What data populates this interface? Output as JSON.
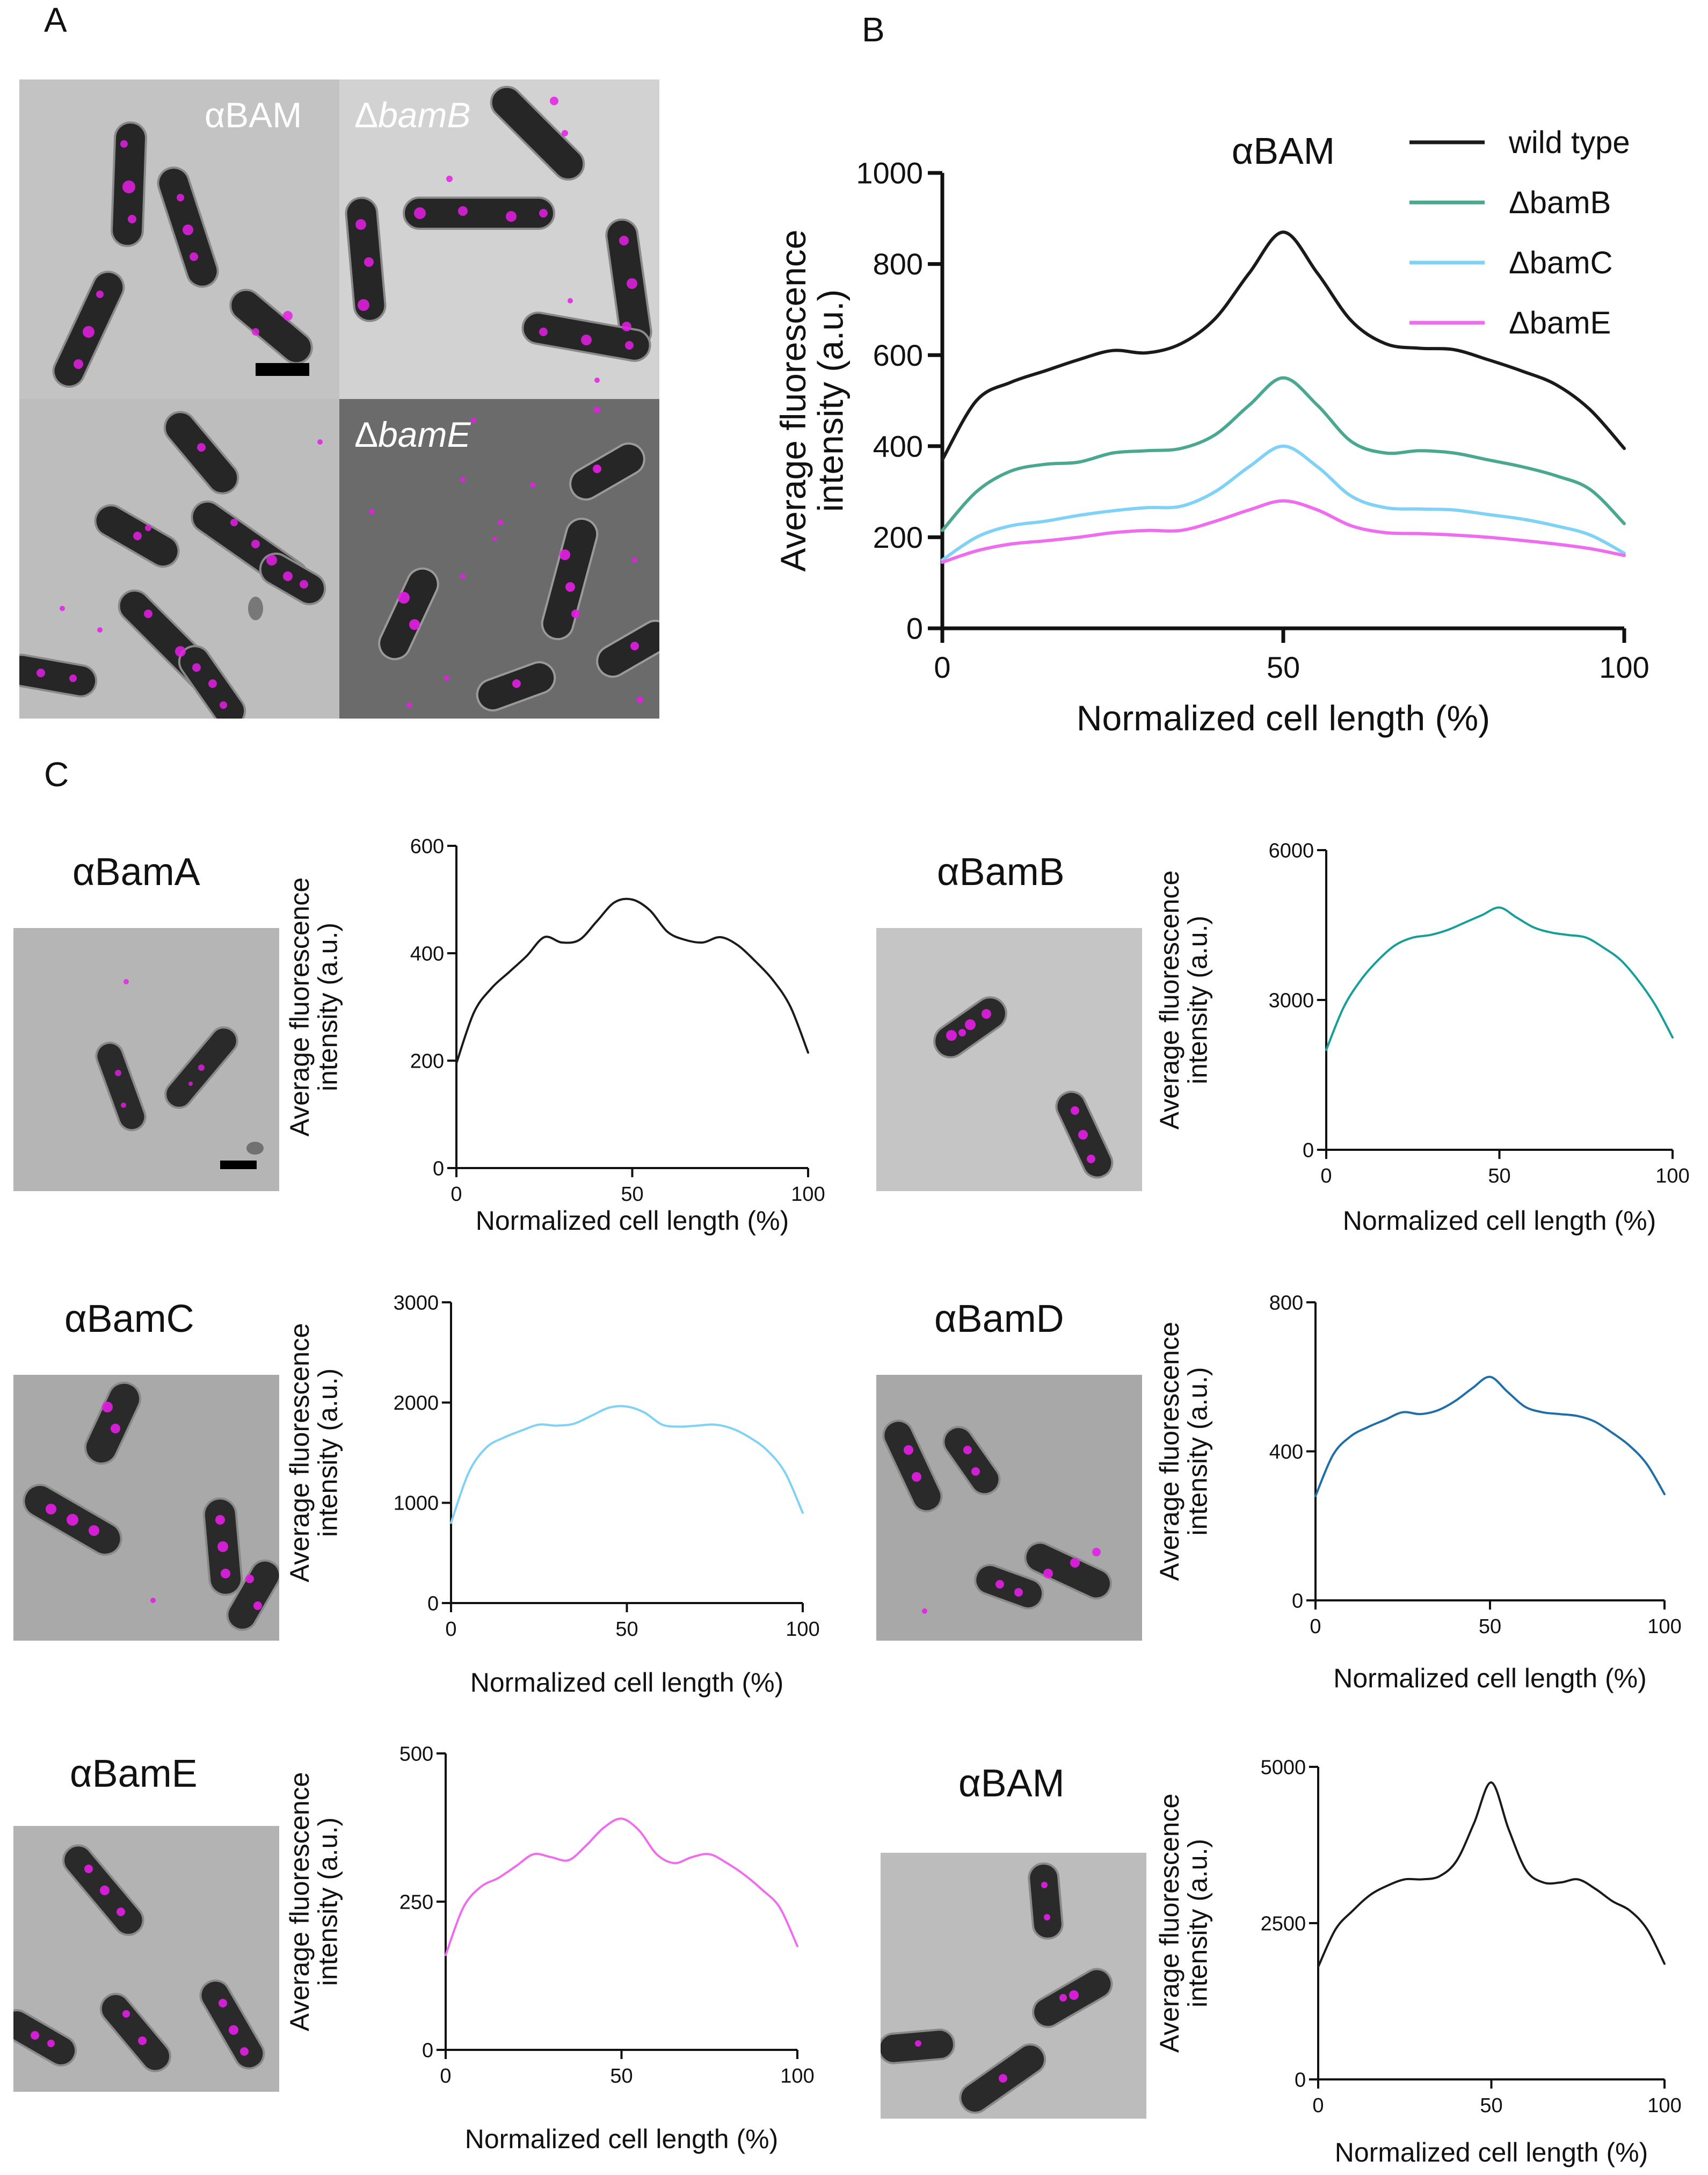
{
  "panel_letters": {
    "a": "A",
    "b": "B",
    "c": "C"
  },
  "panel_a": {
    "tiles": [
      {
        "label": "αBAM",
        "italic": false
      },
      {
        "label": "Δ",
        "italic_part": "bamB"
      },
      {
        "label": "",
        "italic_part": ""
      },
      {
        "label": "Δ",
        "italic_part": "bamE"
      }
    ],
    "colors": {
      "cell": "#1f1f1f",
      "signal": "#e61ee6",
      "background_light": "#c4c4c4",
      "background_dark": "#6e6e6e"
    }
  },
  "panel_c_labels": [
    "αBamA",
    "αBamB",
    "αBamC",
    "αBamD",
    "αBamE",
    "αBAM"
  ],
  "chart_data": [
    {
      "id": "B",
      "type": "line",
      "title": "αBAM",
      "xlabel": "Normalized cell length (%)",
      "ylabel_lines": [
        "Average fluorescence",
        "intensity (a.u.)"
      ],
      "xlim": [
        0,
        100
      ],
      "ylim": [
        0,
        1000
      ],
      "xticks": [
        0,
        50,
        100
      ],
      "yticks": [
        0,
        200,
        400,
        600,
        800,
        1000
      ],
      "legend_placement": "top-right",
      "series": [
        {
          "name": "wild type",
          "color": "#1a1a1a",
          "x": [
            0,
            5,
            10,
            15,
            20,
            25,
            30,
            35,
            40,
            45,
            50,
            55,
            60,
            65,
            70,
            75,
            80,
            85,
            90,
            95,
            100
          ],
          "y": [
            370,
            500,
            540,
            565,
            590,
            610,
            605,
            625,
            680,
            780,
            870,
            780,
            675,
            625,
            615,
            612,
            590,
            565,
            535,
            480,
            395
          ]
        },
        {
          "name": "ΔbamB",
          "color": "#4aa891",
          "x": [
            0,
            5,
            10,
            15,
            20,
            25,
            30,
            35,
            40,
            45,
            50,
            55,
            60,
            65,
            70,
            75,
            80,
            85,
            90,
            95,
            100
          ],
          "y": [
            215,
            300,
            345,
            360,
            365,
            385,
            390,
            395,
            425,
            490,
            550,
            490,
            410,
            385,
            390,
            385,
            370,
            355,
            335,
            305,
            230
          ]
        },
        {
          "name": "ΔbamC",
          "color": "#7fd2f5",
          "x": [
            0,
            5,
            10,
            15,
            20,
            25,
            30,
            35,
            40,
            45,
            50,
            55,
            60,
            65,
            70,
            75,
            80,
            85,
            90,
            95,
            100
          ],
          "y": [
            150,
            200,
            225,
            235,
            248,
            258,
            265,
            268,
            300,
            355,
            400,
            355,
            290,
            265,
            262,
            260,
            250,
            240,
            225,
            205,
            165
          ]
        },
        {
          "name": "ΔbamE",
          "color": "#ef6cef",
          "x": [
            0,
            5,
            10,
            15,
            20,
            25,
            30,
            35,
            40,
            45,
            50,
            55,
            60,
            65,
            70,
            75,
            80,
            85,
            90,
            95,
            100
          ],
          "y": [
            145,
            170,
            185,
            192,
            200,
            210,
            215,
            215,
            235,
            260,
            280,
            260,
            225,
            210,
            208,
            205,
            200,
            193,
            185,
            175,
            160
          ]
        }
      ]
    },
    {
      "id": "BamA",
      "type": "line",
      "xlabel": "Normalized cell length (%)",
      "ylabel_lines": [
        "Average fluorescence",
        "intensity (a.u.)"
      ],
      "xlim": [
        0,
        100
      ],
      "ylim": [
        0,
        600
      ],
      "xticks": [
        0,
        50,
        100
      ],
      "yticks": [
        0,
        200,
        400,
        600
      ],
      "series": [
        {
          "name": "αBamA",
          "color": "#1a1a1a",
          "x": [
            0,
            5,
            10,
            15,
            20,
            25,
            30,
            35,
            40,
            45,
            50,
            55,
            60,
            65,
            70,
            75,
            80,
            85,
            90,
            95,
            100
          ],
          "y": [
            195,
            290,
            335,
            365,
            395,
            430,
            420,
            425,
            460,
            495,
            500,
            480,
            440,
            425,
            420,
            430,
            415,
            385,
            350,
            300,
            215
          ]
        }
      ]
    },
    {
      "id": "BamB",
      "type": "line",
      "xlabel": "Normalized cell length (%)",
      "ylabel_lines": [
        "Average fluorescence",
        "intensity (a.u.)"
      ],
      "xlim": [
        0,
        100
      ],
      "ylim": [
        0,
        6000
      ],
      "xticks": [
        0,
        50,
        100
      ],
      "yticks": [
        0,
        3000,
        6000
      ],
      "series": [
        {
          "name": "αBamB",
          "color": "#169f9a",
          "x": [
            0,
            5,
            10,
            15,
            20,
            25,
            30,
            35,
            40,
            45,
            50,
            55,
            60,
            65,
            70,
            75,
            80,
            85,
            90,
            95,
            100
          ],
          "y": [
            2000,
            2850,
            3400,
            3800,
            4100,
            4250,
            4300,
            4400,
            4550,
            4700,
            4850,
            4650,
            4450,
            4350,
            4300,
            4250,
            4050,
            3800,
            3400,
            2900,
            2250
          ]
        }
      ]
    },
    {
      "id": "BamC",
      "type": "line",
      "xlabel": "Normalized cell length (%)",
      "ylabel_lines": [
        "Average fluorescence",
        "intensity (a.u.)"
      ],
      "xlim": [
        0,
        100
      ],
      "ylim": [
        0,
        3000
      ],
      "xticks": [
        0,
        50,
        100
      ],
      "yticks": [
        0,
        1000,
        2000,
        3000
      ],
      "series": [
        {
          "name": "αBamC",
          "color": "#7fd2f5",
          "x": [
            0,
            5,
            10,
            15,
            20,
            25,
            30,
            35,
            40,
            45,
            50,
            55,
            60,
            65,
            70,
            75,
            80,
            85,
            90,
            95,
            100
          ],
          "y": [
            800,
            1300,
            1550,
            1650,
            1720,
            1780,
            1770,
            1790,
            1870,
            1950,
            1960,
            1900,
            1780,
            1760,
            1770,
            1780,
            1740,
            1650,
            1520,
            1300,
            900
          ]
        }
      ]
    },
    {
      "id": "BamD",
      "type": "line",
      "xlabel": "Normalized cell length (%)",
      "ylabel_lines": [
        "Average fluorescence",
        "intensity (a.u.)"
      ],
      "xlim": [
        0,
        100
      ],
      "ylim": [
        0,
        800
      ],
      "xticks": [
        0,
        50,
        100
      ],
      "yticks": [
        0,
        400,
        800
      ],
      "series": [
        {
          "name": "αBamD",
          "color": "#1f6ea8",
          "x": [
            0,
            5,
            10,
            15,
            20,
            25,
            30,
            35,
            40,
            45,
            50,
            55,
            60,
            65,
            70,
            75,
            80,
            85,
            90,
            95,
            100
          ],
          "y": [
            280,
            390,
            440,
            465,
            485,
            505,
            500,
            510,
            535,
            570,
            600,
            560,
            520,
            505,
            500,
            495,
            480,
            450,
            415,
            365,
            285
          ]
        }
      ]
    },
    {
      "id": "BamE",
      "type": "line",
      "xlabel": "Normalized cell length (%)",
      "ylabel_lines": [
        "Average fluorescence",
        "intensity (a.u.)"
      ],
      "xlim": [
        0,
        100
      ],
      "ylim": [
        0,
        500
      ],
      "xticks": [
        0,
        50,
        100
      ],
      "yticks": [
        0,
        250,
        500
      ],
      "series": [
        {
          "name": "αBamE",
          "color": "#ef6cef",
          "x": [
            0,
            5,
            10,
            15,
            20,
            25,
            30,
            35,
            40,
            45,
            50,
            55,
            60,
            65,
            70,
            75,
            80,
            85,
            90,
            95,
            100
          ],
          "y": [
            160,
            240,
            275,
            290,
            310,
            330,
            325,
            320,
            345,
            375,
            390,
            370,
            330,
            315,
            325,
            330,
            315,
            295,
            270,
            240,
            175
          ]
        }
      ]
    },
    {
      "id": "BAM",
      "type": "line",
      "xlabel": "Normalized cell length (%)",
      "ylabel_lines": [
        "Average fluorescence",
        "intensity (a.u.)"
      ],
      "xlim": [
        0,
        100
      ],
      "ylim": [
        0,
        5000
      ],
      "xticks": [
        0,
        50,
        100
      ],
      "yticks": [
        0,
        2500,
        5000
      ],
      "series": [
        {
          "name": "αBAM",
          "color": "#1a1a1a",
          "x": [
            0,
            5,
            10,
            15,
            20,
            25,
            30,
            35,
            40,
            45,
            50,
            55,
            60,
            65,
            70,
            75,
            80,
            85,
            90,
            95,
            100
          ],
          "y": [
            1800,
            2400,
            2700,
            2950,
            3100,
            3200,
            3200,
            3250,
            3500,
            4100,
            4750,
            4000,
            3350,
            3150,
            3150,
            3200,
            3050,
            2850,
            2700,
            2400,
            1850
          ]
        }
      ]
    }
  ]
}
